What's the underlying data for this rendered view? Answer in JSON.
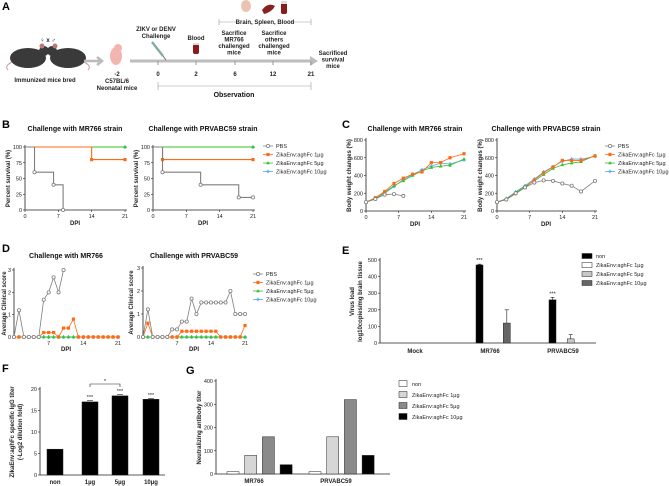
{
  "panel_labels": [
    "A",
    "B",
    "C",
    "D",
    "E",
    "F",
    "G"
  ],
  "panel_a": {
    "sexes": "♀ x ♂",
    "bred_label": "Immunized mice bred",
    "neonatal": [
      "-2",
      "C57BL/6",
      "Neonatal mice"
    ],
    "challenge": [
      "ZIKV or DENV",
      "Challenge"
    ],
    "blood": "Blood",
    "sacrifice_mr766": [
      "Sacrifice",
      "MR766",
      "challenged",
      "mice"
    ],
    "sacrifice_others": [
      "Sacrifice",
      "others",
      "challenged",
      "mice"
    ],
    "sacrificed_survival": [
      "Sacrificed",
      "survival",
      "mice"
    ],
    "tissues": "Brain, Spleen, Blood",
    "days": [
      "0",
      "2",
      "6",
      "12",
      "21"
    ],
    "observation": "Observation"
  },
  "colors": {
    "PBS": "#7f7f7f",
    "1ug": "#ff6a13",
    "5ug": "#35c02a",
    "10ug": "#5aaaf2"
  },
  "legend_line": [
    "PBS",
    "ZikaEnv:aghFc 1µg",
    "ZikaEnv:aghFc 5µg",
    "ZikaEnv:aghFc 10µg"
  ],
  "chart_data": [
    {
      "id": "B1",
      "type": "line",
      "step": true,
      "title": "Challenge with MR766 strain",
      "xlabel": "DPI",
      "ylabel": "Percent survival (%)",
      "xlim": [
        0,
        21
      ],
      "ylim": [
        0,
        100
      ],
      "xticks": [
        0,
        7,
        14,
        21
      ],
      "yticks": [
        0,
        25,
        50,
        75,
        100
      ],
      "series": [
        {
          "name": "PBS",
          "x": [
            0,
            2,
            6,
            8
          ],
          "y": [
            100,
            60,
            40,
            0
          ]
        },
        {
          "name": "ZikaEnv:aghFc 1µg",
          "x": [
            0,
            14,
            21
          ],
          "y": [
            100,
            80,
            80
          ]
        },
        {
          "name": "ZikaEnv:aghFc 5µg",
          "x": [
            0,
            21
          ],
          "y": [
            100,
            100
          ]
        },
        {
          "name": "ZikaEnv:aghFc 10µg",
          "x": [
            0,
            21
          ],
          "y": [
            100,
            100
          ]
        }
      ]
    },
    {
      "id": "B2",
      "type": "line",
      "step": true,
      "title": "Challenge with PRVABC59 strain",
      "xlabel": "DPI",
      "ylabel": "Percent survival (%)",
      "xlim": [
        0,
        21
      ],
      "ylim": [
        0,
        100
      ],
      "xticks": [
        0,
        7,
        14,
        21
      ],
      "yticks": [
        0,
        25,
        50,
        75,
        100
      ],
      "series": [
        {
          "name": "PBS",
          "x": [
            0,
            2,
            10,
            18,
            21
          ],
          "y": [
            100,
            60,
            40,
            20,
            20
          ]
        },
        {
          "name": "ZikaEnv:aghFc 1µg",
          "x": [
            0,
            2,
            21
          ],
          "y": [
            100,
            80,
            80
          ]
        },
        {
          "name": "ZikaEnv:aghFc 5µg",
          "x": [
            0,
            21
          ],
          "y": [
            100,
            100
          ]
        },
        {
          "name": "ZikaEnv:aghFc 10µg",
          "x": [
            0,
            21
          ],
          "y": [
            100,
            100
          ]
        }
      ]
    },
    {
      "id": "C1",
      "type": "line",
      "title": "Challenge with MR766 strain",
      "xlabel": "DPI",
      "ylabel": "Body weight changes (%)",
      "xlim": [
        0,
        21
      ],
      "ylim": [
        0,
        800
      ],
      "xticks": [
        0,
        7,
        14,
        21
      ],
      "yticks": [
        0,
        200,
        400,
        600,
        800
      ],
      "series": [
        {
          "name": "PBS",
          "x": [
            0,
            2,
            4,
            6,
            8
          ],
          "y": [
            100,
            135,
            185,
            190,
            170
          ]
        },
        {
          "name": "ZikaEnv:aghFc 1µg",
          "x": [
            0,
            2,
            4,
            6,
            8,
            10,
            12,
            14,
            16,
            18,
            21
          ],
          "y": [
            100,
            150,
            220,
            310,
            370,
            415,
            440,
            545,
            545,
            600,
            645
          ]
        },
        {
          "name": "ZikaEnv:aghFc 5µg",
          "x": [
            0,
            2,
            4,
            6,
            8,
            10,
            12,
            14,
            16,
            18,
            21
          ],
          "y": [
            100,
            135,
            210,
            285,
            340,
            400,
            450,
            490,
            505,
            515,
            585
          ]
        },
        {
          "name": "ZikaEnv:aghFc 10µg",
          "x": [
            0,
            2,
            4,
            6,
            8,
            10,
            12,
            14,
            16,
            18,
            21
          ],
          "y": [
            100,
            140,
            200,
            275,
            355,
            410,
            465,
            505,
            540,
            530,
            575
          ]
        }
      ]
    },
    {
      "id": "C2",
      "type": "line",
      "title": "Challenge with PRVABC59 strain",
      "xlabel": "DPI",
      "ylabel": "Body weight changes (%)",
      "xlim": [
        0,
        21
      ],
      "ylim": [
        0,
        800
      ],
      "xticks": [
        0,
        7,
        14,
        21
      ],
      "yticks": [
        0,
        200,
        400,
        600,
        800
      ],
      "series": [
        {
          "name": "PBS",
          "x": [
            0,
            2,
            4,
            6,
            8,
            10,
            12,
            14,
            16,
            18,
            21
          ],
          "y": [
            100,
            130,
            200,
            265,
            320,
            345,
            340,
            310,
            285,
            220,
            340
          ]
        },
        {
          "name": "ZikaEnv:aghFc 1µg",
          "x": [
            0,
            2,
            4,
            6,
            8,
            10,
            12,
            14,
            16,
            18,
            21
          ],
          "y": [
            100,
            130,
            195,
            265,
            350,
            430,
            495,
            570,
            570,
            570,
            620
          ]
        },
        {
          "name": "ZikaEnv:aghFc 5µg",
          "x": [
            0,
            2,
            4,
            6,
            8,
            10,
            12,
            14,
            16,
            18,
            21
          ],
          "y": [
            100,
            135,
            210,
            280,
            340,
            410,
            480,
            520,
            540,
            555,
            625
          ]
        },
        {
          "name": "ZikaEnv:aghFc 10µg",
          "x": [
            0,
            2,
            4,
            6,
            8,
            10,
            12,
            14,
            16,
            18,
            21
          ],
          "y": [
            100,
            140,
            215,
            285,
            360,
            440,
            500,
            560,
            585,
            585,
            615
          ]
        }
      ]
    },
    {
      "id": "D1",
      "type": "line",
      "title": "Challenge with MR766",
      "xlabel": "DPI",
      "ylabel": "Average Clinical score",
      "xlim": [
        0,
        21
      ],
      "ylim": [
        0,
        3
      ],
      "xticks": [
        7,
        14,
        21
      ],
      "yticks": [
        0,
        1,
        2,
        3
      ],
      "series": [
        {
          "name": "PBS",
          "x": [
            0,
            1,
            2,
            3,
            4,
            5,
            6,
            7,
            8,
            9,
            10
          ],
          "y": [
            0,
            1.2,
            0,
            0,
            0,
            0,
            1.67,
            2,
            2.67,
            2,
            3
          ]
        },
        {
          "name": "ZikaEnv:aghFc 1µg",
          "x": [
            0,
            1,
            2,
            3,
            4,
            5,
            6,
            7,
            8,
            9,
            10,
            11,
            12,
            13,
            14,
            15,
            16,
            17,
            18,
            19,
            20,
            21
          ],
          "y": [
            0,
            0,
            0,
            0,
            0,
            0,
            0.2,
            0.2,
            0.2,
            0,
            0.4,
            0.4,
            0.8,
            0,
            0,
            0,
            0,
            0,
            0,
            0,
            0,
            0
          ]
        },
        {
          "name": "ZikaEnv:aghFc 5µg",
          "x": [
            0,
            1,
            2,
            3,
            4,
            5,
            6,
            7,
            8,
            9,
            10,
            11,
            12,
            13,
            14,
            15,
            16,
            17,
            18,
            19,
            20,
            21
          ],
          "y": [
            0,
            0,
            0,
            0,
            0,
            0,
            0,
            0,
            0,
            0,
            0,
            0,
            0,
            0,
            0,
            0,
            0,
            0,
            0,
            0,
            0,
            0
          ]
        },
        {
          "name": "ZikaEnv:aghFc 10µg",
          "x": [
            0,
            1,
            2,
            3,
            4,
            5,
            6,
            7,
            8,
            9,
            10,
            11,
            12,
            13,
            14,
            15,
            16,
            17,
            18,
            19,
            20,
            21
          ],
          "y": [
            0,
            0,
            0,
            0,
            0,
            0,
            0,
            0,
            0,
            0,
            0,
            0,
            0,
            0,
            0,
            0,
            0,
            0,
            0,
            0,
            0,
            0
          ]
        }
      ]
    },
    {
      "id": "D2",
      "type": "line",
      "title": "Challenge with PRVABC59",
      "xlabel": "DPI",
      "ylabel": "Average Clinical score",
      "xlim": [
        0,
        21
      ],
      "ylim": [
        0,
        3
      ],
      "xticks": [
        7,
        14,
        21
      ],
      "yticks": [
        0,
        1,
        2,
        3
      ],
      "series": [
        {
          "name": "PBS",
          "x": [
            0,
            1,
            2,
            3,
            4,
            5,
            6,
            7,
            8,
            9,
            10,
            11,
            12,
            13,
            14,
            15,
            16,
            17,
            18,
            19,
            20,
            21
          ],
          "y": [
            0,
            1.2,
            0,
            0,
            0,
            0,
            0.33,
            0.33,
            0.67,
            0.67,
            1.67,
            1,
            1.5,
            1.5,
            1.5,
            1.5,
            1.5,
            1.5,
            2,
            1,
            1,
            1
          ]
        },
        {
          "name": "ZikaEnv:aghFc 1µg",
          "x": [
            0,
            1,
            2,
            3,
            4,
            5,
            6,
            7,
            8,
            9,
            10,
            11,
            12,
            13,
            14,
            15,
            16,
            17,
            18,
            19,
            20,
            21
          ],
          "y": [
            0,
            0.6,
            0,
            0,
            0,
            0,
            0,
            0,
            0.25,
            0.25,
            0.25,
            0.25,
            0.25,
            0.25,
            0.25,
            0.25,
            0,
            0,
            0,
            0,
            0,
            0.5
          ]
        },
        {
          "name": "ZikaEnv:aghFc 5µg",
          "x": [
            0,
            1,
            2,
            3,
            4,
            5,
            6,
            7,
            8,
            9,
            10,
            11,
            12,
            13,
            14,
            15,
            16,
            17,
            18,
            19,
            20,
            21
          ],
          "y": [
            0,
            0,
            0,
            0,
            0,
            0,
            0,
            0,
            0,
            0,
            0,
            0,
            0,
            0,
            0,
            0,
            0,
            0,
            0,
            0,
            0,
            0
          ]
        },
        {
          "name": "ZikaEnv:aghFc 10µg",
          "x": [
            0,
            1,
            2,
            3,
            4,
            5,
            6,
            7,
            8,
            9,
            10,
            11,
            12,
            13,
            14,
            15,
            16,
            17,
            18,
            19,
            20,
            21
          ],
          "y": [
            0,
            0,
            0,
            0,
            0,
            0,
            0,
            0,
            0,
            0,
            0,
            0,
            0,
            0,
            0,
            0,
            0,
            0,
            0,
            0,
            0,
            0
          ]
        }
      ]
    },
    {
      "id": "E",
      "type": "bar",
      "title": "",
      "xlabel": "",
      "ylabel": [
        "Virus load",
        "log10copies/mg brain tissue"
      ],
      "ylim": [
        0,
        500
      ],
      "yticks": [
        0,
        100,
        200,
        300,
        400,
        500
      ],
      "categories": [
        "Mock",
        "MR766",
        "PRVABC59"
      ],
      "series": [
        {
          "name": "non",
          "color": "#000000",
          "values": [
            0,
            470,
            260
          ],
          "err": [
            0,
            5,
            15
          ],
          "sig": [
            "",
            "***",
            "***"
          ]
        },
        {
          "name": "ZikaEnv:aghFc 1µg",
          "color": "#ffffff",
          "values": [
            0,
            0,
            0
          ],
          "err": [
            0,
            0,
            0
          ],
          "sig": [
            "",
            "",
            ""
          ]
        },
        {
          "name": "ZikaEnv:aghFc 5µg",
          "color": "#c8c8c8",
          "values": [
            0,
            0,
            25
          ],
          "err": [
            0,
            0,
            25
          ],
          "sig": [
            "",
            "",
            ""
          ]
        },
        {
          "name": "ZikaEnv:aghFc 10µg",
          "color": "#666666",
          "values": [
            0,
            120,
            0
          ],
          "err": [
            0,
            80,
            0
          ],
          "sig": [
            "",
            "",
            ""
          ]
        }
      ]
    },
    {
      "id": "F",
      "type": "bar",
      "title": "",
      "xlabel": "",
      "ylabel": [
        "ZikaEnv:aghFc specific IgG titer",
        "(-Log2 dilution fold)"
      ],
      "ylim": [
        0,
        20
      ],
      "yticks": [
        0,
        5,
        10,
        15,
        20
      ],
      "categories": [
        "non",
        "1µg",
        "5µg",
        "10µg"
      ],
      "values": [
        6,
        17,
        18.4,
        17.6
      ],
      "err": [
        0,
        0.3,
        0.3,
        0.2
      ],
      "sig": [
        "",
        "***",
        "***",
        "***"
      ],
      "bracket": {
        "from": "1µg",
        "to": "5µg",
        "label": "*"
      }
    },
    {
      "id": "G",
      "type": "bar",
      "title": "",
      "xlabel": "",
      "ylabel": "Neutralizing antibody titer",
      "ylim": [
        0,
        400
      ],
      "yticks": [
        0,
        100,
        200,
        300,
        400
      ],
      "categories": [
        "MR766",
        "PRVABC59"
      ],
      "series": [
        {
          "name": "non",
          "color": "#ffffff",
          "values": [
            10,
            10
          ]
        },
        {
          "name": "ZikaEnv:aghFc 1µg",
          "color": "#d6d6d6",
          "values": [
            80,
            160
          ]
        },
        {
          "name": "ZikaEnv:aghFc 5µg",
          "color": "#8a8a8a",
          "values": [
            160,
            320
          ]
        },
        {
          "name": "ZikaEnv:aghFc 10µg",
          "color": "#000000",
          "values": [
            40,
            80
          ]
        }
      ]
    }
  ]
}
